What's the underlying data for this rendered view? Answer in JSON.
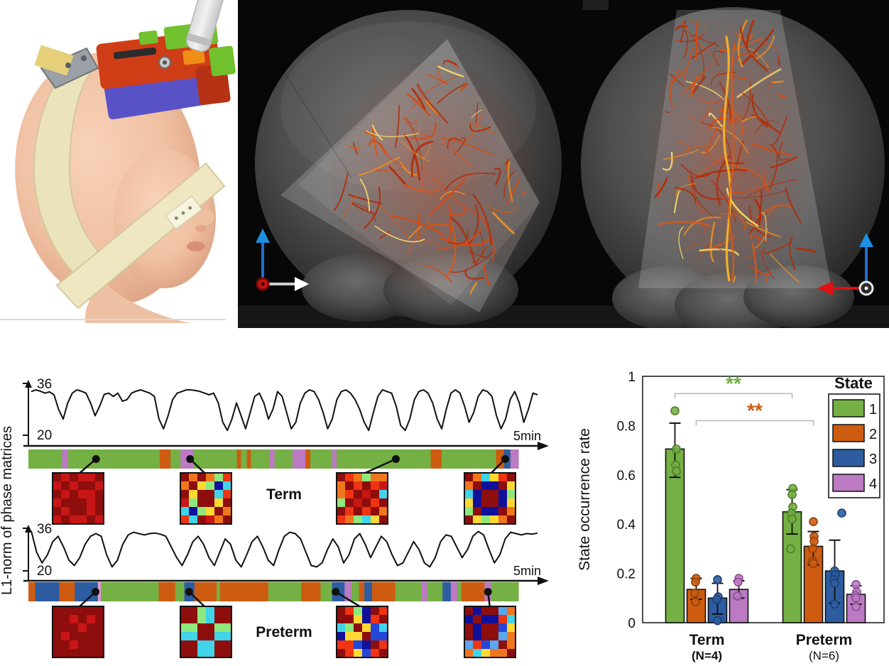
{
  "state_colors": {
    "1": "#74b043",
    "2": "#cd5c11",
    "3": "#2d5da0",
    "4": "#bb7ac2",
    "k": "#e39ad6"
  },
  "state_strokes": {
    "1": "#4e7d2a",
    "2": "#8e3f09",
    "3": "#1c3f73",
    "4": "#8a4f92"
  },
  "matrix_colors": {
    "m": "#8e0d0d",
    "r": "#c81616",
    "R": "#ee3412",
    "o": "#f0761c",
    "y": "#ffd832",
    "g": "#8ee87d",
    "c": "#3fd4e8",
    "C": "#57a8f0",
    "B": "#10109b",
    "u": "#2547d8"
  },
  "chart_data": [
    {
      "type": "line",
      "name": "Term",
      "ylabel": "L1-norm of phase matrices",
      "ymax_label": "36",
      "ymin_label": "20",
      "xlabel": "5min",
      "ylim": [
        20,
        36
      ],
      "values": [
        33.5,
        34,
        33.6,
        33,
        33.4,
        32.5,
        28,
        25,
        30,
        33,
        34,
        33.6,
        33,
        30,
        26,
        29,
        32.6,
        33,
        32,
        33,
        30.5,
        31,
        33,
        33.6,
        34,
        33.5,
        33,
        32,
        25,
        22,
        26,
        31,
        33,
        33.5,
        34,
        34,
        33.8,
        33.5,
        33,
        32.5,
        33,
        30,
        24,
        21.5,
        25,
        30,
        26,
        22,
        27,
        32,
        33,
        30,
        25,
        28,
        33.5,
        32,
        27,
        22,
        24,
        30,
        33,
        34,
        33.5,
        31,
        27,
        22,
        25,
        31,
        33.5,
        34,
        33,
        31,
        28,
        24,
        21.5,
        27,
        32,
        34,
        33.5,
        33,
        29,
        23,
        21.5,
        25,
        31,
        33.5,
        34,
        33,
        30,
        25,
        22,
        28,
        33,
        34,
        33,
        29,
        24,
        27,
        32,
        34,
        33.5,
        32,
        26,
        22,
        25,
        31,
        33.5,
        30,
        24,
        28,
        33,
        32.5
      ],
      "state_bar": [
        [
          "1",
          6.8
        ],
        [
          "4",
          1.2
        ],
        [
          "1",
          18.5
        ],
        [
          "2",
          2.2
        ],
        [
          "1",
          2.0
        ],
        [
          "4",
          2.6
        ],
        [
          "1",
          8.8
        ],
        [
          "2",
          0.8
        ],
        [
          "1",
          1.2
        ],
        [
          "2",
          0.8
        ],
        [
          "1",
          3.8
        ],
        [
          "4",
          1.0
        ],
        [
          "1",
          3.6
        ],
        [
          "4",
          2.6
        ],
        [
          "2",
          1.0
        ],
        [
          "1",
          4.4
        ],
        [
          "4",
          0.9
        ],
        [
          "1",
          19.0
        ],
        [
          "2",
          2.2
        ],
        [
          "1",
          11.0
        ],
        [
          "2",
          1.6
        ],
        [
          "3",
          1.3
        ],
        [
          "4",
          1.6
        ]
      ],
      "marker_pct": [
        13.8,
        33.0,
        75.0,
        97.3
      ],
      "matrices": [
        [
          "mrmrrm",
          "rmrmmr",
          "mrmrrm",
          "rmmmrm",
          "mrmmrm",
          "rmrrmr"
        ],
        [
          "momogR",
          "omygBc",
          "mymmcR",
          "rgmmym",
          "cBgymo",
          "Rcmrom"
        ],
        [
          "mRogoo",
          "omRmRr",
          "oRmrmc",
          "gmrmRm",
          "mRmRmo",
          "Rogcym"
        ],
        [
          "mocyRm",
          "omBBmy",
          "cBmmBg",
          "yBmmBy",
          "gmBBmo",
          "mygyom"
        ]
      ]
    },
    {
      "type": "line",
      "name": "Preterm",
      "ymax_label": "36",
      "ymin_label": "20",
      "xlabel": "5min",
      "ylim": [
        20,
        36
      ],
      "values": [
        35,
        27,
        23,
        26,
        31,
        33,
        29,
        24,
        22,
        25,
        30,
        33,
        34,
        33,
        26,
        21.5,
        24,
        30,
        33.5,
        34.5,
        34,
        33.5,
        34,
        34.2,
        33.8,
        33,
        29,
        25,
        22,
        26,
        31,
        33,
        30,
        25,
        22,
        27,
        32,
        30,
        24,
        21.5,
        26,
        31,
        33,
        29,
        24,
        22,
        28,
        33,
        34.5,
        34,
        32,
        27,
        22,
        21.5,
        23,
        28,
        32,
        29,
        23,
        26,
        32,
        34,
        30,
        25,
        29,
        33,
        31,
        26,
        22,
        23,
        27,
        31,
        28,
        23,
        21.5,
        25,
        31,
        33.5,
        33,
        29,
        25,
        28,
        33,
        34.8,
        33.5,
        28,
        23,
        26,
        32,
        34.5,
        34,
        33.5,
        34,
        33.8,
        34.2
      ],
      "state_bar": [
        [
          "2",
          1.4
        ],
        [
          "3",
          5.0
        ],
        [
          "2",
          3.2
        ],
        [
          "3",
          4.8
        ],
        [
          "k",
          0.6
        ],
        [
          "1",
          12.0
        ],
        [
          "2",
          3.4
        ],
        [
          "1",
          1.9
        ],
        [
          "3",
          2.1
        ],
        [
          "2",
          4.6
        ],
        [
          "1",
          0.7
        ],
        [
          "2",
          10.0
        ],
        [
          "1",
          6.8
        ],
        [
          "2",
          4.0
        ],
        [
          "1",
          2.4
        ],
        [
          "3",
          2.6
        ],
        [
          "4",
          1.4
        ],
        [
          "1",
          1.6
        ],
        [
          "2",
          1.1
        ],
        [
          "3",
          1.6
        ],
        [
          "2",
          4.8
        ],
        [
          "1",
          5.4
        ],
        [
          "4",
          1.2
        ],
        [
          "1",
          3.2
        ],
        [
          "3",
          1.7
        ],
        [
          "4",
          1.4
        ],
        [
          "1",
          0.8
        ],
        [
          "2",
          4.8
        ],
        [
          "4",
          1.4
        ],
        [
          "1",
          5.6
        ]
      ],
      "marker_pct": [
        13.7,
        32.8,
        62.7,
        93.8
      ],
      "matrices": [
        [
          "mmmmmm",
          "mmrmrm",
          "mmmrmm",
          "mrmmmm",
          "mmrmmm",
          "mmmmmm"
        ],
        [
          "mmgcmm",
          "mmgcmm",
          "ggmmgg",
          "ccmmcc",
          "mmccmm",
          "mmccmm"
        ],
        [
          "mRgBmR",
          "mmyBRm",
          "cgmyuc",
          "Byymuu",
          "RRuBmR",
          "mRyuRm"
        ],
        [
          "mBmmCo",
          "BmBBRc",
          "mBmmuy",
          "mBmmCo",
          "CRuCmo",
          "ocyoom"
        ]
      ]
    },
    {
      "type": "bar",
      "ylabel": "State occurrence rate",
      "ylim": [
        0,
        1
      ],
      "yticks": [
        "0",
        "0.2",
        "0.4",
        "0.6",
        "0.8",
        "1"
      ],
      "legend": {
        "title": "State",
        "labels": [
          "1",
          "2",
          "3",
          "4"
        ]
      },
      "groups": [
        {
          "label": "Term",
          "sublabel": "(N=4)",
          "means": [
            0.705,
            0.135,
            0.1,
            0.135
          ],
          "errors": [
            [
              0.59,
              0.81
            ],
            [
              0.095,
              0.18
            ],
            [
              0.035,
              0.16
            ],
            [
              0.1,
              0.17
            ]
          ],
          "points": [
            [
              [
                0,
                0.86
              ],
              [
                2,
                0.705
              ],
              [
                1,
                0.64
              ],
              [
                2,
                0.615
              ]
            ],
            [
              [
                0,
                0.18
              ],
              [
                -1,
                0.165
              ],
              [
                -2,
                0.12
              ],
              [
                -1,
                0.085
              ]
            ],
            [
              [
                0,
                0.175
              ],
              [
                1,
                0.105
              ],
              [
                -1,
                0.095
              ],
              [
                0,
                0.008
              ]
            ],
            [
              [
                0,
                0.18
              ],
              [
                -1,
                0.165
              ],
              [
                -2,
                0.108
              ]
            ]
          ]
        },
        {
          "label": "Preterm",
          "sublabel": "(N=6)",
          "means": [
            0.45,
            0.31,
            0.21,
            0.115
          ],
          "errors": [
            [
              0.36,
              0.54
            ],
            [
              0.235,
              0.37
            ],
            [
              0.08,
              0.335
            ],
            [
              0.075,
              0.15
            ]
          ],
          "points": [
            [
              [
                1,
                0.545
              ],
              [
                0,
                0.52
              ],
              [
                1,
                0.47
              ],
              [
                -1,
                0.445
              ],
              [
                0,
                0.42
              ],
              [
                -2,
                0.3
              ]
            ],
            [
              [
                0,
                0.41
              ],
              [
                1,
                0.35
              ],
              [
                1,
                0.33
              ],
              [
                -1,
                0.3
              ],
              [
                -1,
                0.25
              ],
              [
                0,
                0.24
              ]
            ],
            [
              [
                10,
                0.445
              ],
              [
                0,
                0.21
              ],
              [
                1,
                0.195
              ],
              [
                -1,
                0.175
              ],
              [
                0,
                0.16
              ],
              [
                0,
                0.075
              ]
            ],
            [
              [
                0,
                0.155
              ],
              [
                1,
                0.125
              ],
              [
                -1,
                0.11
              ],
              [
                0,
                0.1
              ],
              [
                0,
                0.065
              ]
            ]
          ]
        }
      ],
      "significance": [
        {
          "series": 0,
          "label": "**",
          "y": 0.93
        },
        {
          "series": 1,
          "label": "**",
          "y": 0.82
        }
      ]
    }
  ]
}
